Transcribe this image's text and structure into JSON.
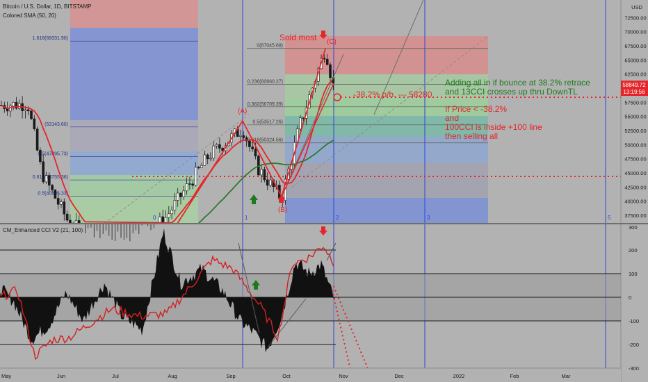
{
  "colors": {
    "background": "#b2b2b2",
    "main_line": "#e5252a",
    "sma_green": "#2b7a2b",
    "cci_line": "#d42020",
    "annotation_red": "#e5252a",
    "annotation_green": "#1e7a1e",
    "price_tag": "#e5252a",
    "vline": "#2a46d9"
  },
  "chart_data": [
    {
      "type": "candlestick",
      "title": "Bitcoin / U.S. Dollar, 1D, BITSTAMP",
      "indicator_label": "Colored SMA (50, 20)",
      "currency": "USD",
      "ylim": [
        36000,
        75500
      ],
      "y_ticks": [
        37500,
        40000,
        42500,
        45000,
        47500,
        50000,
        52500,
        55000,
        57500,
        60000,
        62500,
        65000,
        67500,
        70000,
        72500,
        75000
      ],
      "y_tick_labels": [
        "37500.00",
        "40000.00",
        "42500.00",
        "45000.00",
        "47500.00",
        "50000.00",
        "52500.00",
        "55000.00",
        "57500.00",
        "60000.00",
        "62500.00",
        "65000.00",
        "67500.00",
        "70000.00",
        "72500.00",
        "75000.00"
      ],
      "x_tick_labels": [
        "May",
        "Jun",
        "Jul",
        "Aug",
        "Sep",
        "Oct",
        "Nov",
        "Dec",
        "2022",
        "Feb",
        "Mar"
      ],
      "last_price": "58849.72",
      "countdown": "13:19:56",
      "fib_left": {
        "levels": [
          {
            "label": "1.618(68331.90)",
            "value": 68331.9
          },
          {
            "label": "(53143.60)",
            "value": 53143.6
          },
          {
            "label": "0.5(47895.73)",
            "value": 47895.73
          },
          {
            "label": "0.618(43755.36)",
            "value": 43755.36
          },
          {
            "label": "0.5(40895.33)",
            "value": 40895.33
          }
        ]
      },
      "fib_right": {
        "levels": [
          {
            "label": "0(67045.68)",
            "value": 67045.68
          },
          {
            "label": "0.236(60660.27)",
            "value": 60660.27
          },
          {
            "label": "0.382(56709.39)",
            "value": 56709.39
          },
          {
            "label": "0.5(53517.26)",
            "value": 53517.26
          },
          {
            "label": "0.618(50324.56)",
            "value": 50324.56
          }
        ]
      },
      "vertical_line_labels": [
        "0",
        "1",
        "2",
        "3",
        "5"
      ],
      "annotations": {
        "sold_most": "Sold most",
        "wave_a": "(A)",
        "wave_b": "(B)",
        "wave_c": "(C)",
        "target": "-38.2% p/b. --- 58280",
        "green_note_line1": "Adding all in if bounce at 38.2% retrace",
        "green_note_line2": "and 13CCI crosses up thru DownTL",
        "red_note_line1": "If Price < -38.2%",
        "red_note_line2": "and",
        "red_note_line3": "100CCI is inside +100 line",
        "red_note_line4": "then selling all"
      },
      "key_points": [
        {
          "x": "2021-05-01",
          "y": 57000
        },
        {
          "x": "2021-06-22",
          "y": 31000
        },
        {
          "x": "2021-09-07",
          "y": 52900
        },
        {
          "x": "2021-09-29",
          "y": 40500
        },
        {
          "x": "2021-10-20",
          "y": 67045
        },
        {
          "x": "2021-10-25",
          "y": 58850
        }
      ]
    },
    {
      "type": "line",
      "title": "CM_Enhanced CCI V2 (21, 100)",
      "ylim": [
        -300,
        300
      ],
      "y_ticks": [
        300,
        200,
        100,
        0,
        -100,
        -200,
        -300
      ],
      "y_tick_labels": [
        "300",
        "200",
        "100",
        "0",
        "-100",
        "-200",
        "-300"
      ],
      "reference_lines": [
        200,
        100,
        0,
        -100,
        -200
      ]
    }
  ]
}
